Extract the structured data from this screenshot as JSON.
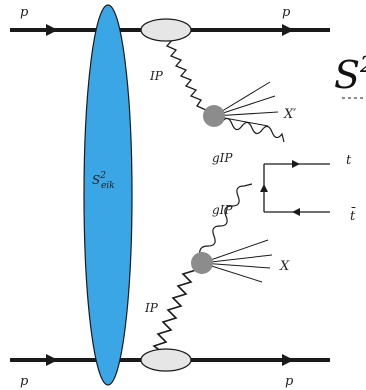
{
  "colors": {
    "line": "#1a1a1a",
    "survival_fill": "#3aa6e6",
    "blob_fill": "#8c8c8c",
    "vertex_fill": "#e6e6e6"
  },
  "labels": {
    "proton_top_left": "p",
    "proton_top_right": "p",
    "proton_bottom_left": "p",
    "proton_bottom_right": "p",
    "pomeron_top": "IP",
    "pomeron_bottom": "IP",
    "gluon_top": "gIP",
    "gluon_bottom": "gIP",
    "remnant_top": "X′",
    "remnant_bottom": "X",
    "quark_t": "t",
    "quark_tbar": "t̄",
    "survival_base": "S",
    "survival_sup": "2",
    "survival_sub": "eik",
    "edge_symbol_base": "S",
    "edge_symbol_sup": "2"
  }
}
